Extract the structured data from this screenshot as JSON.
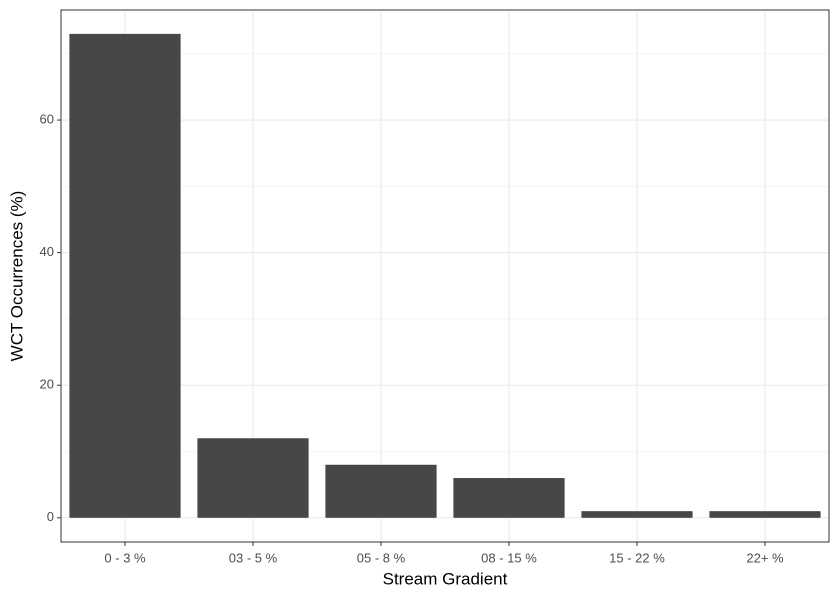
{
  "chart_data": {
    "type": "bar",
    "x_label": "Stream Gradient",
    "y_label": "WCT Occurrences (%)",
    "categories": [
      "0 - 3 %",
      "03 - 5 %",
      "05 - 8 %",
      "08 - 15 %",
      "15 - 22 %",
      "22+ %"
    ],
    "values": [
      73,
      12,
      8,
      6,
      1,
      1
    ],
    "color": "#474747",
    "ylim": [
      -3.65,
      76.6
    ],
    "yticks": [
      0,
      20,
      40,
      60
    ],
    "y_minor_ticks": [
      10,
      30,
      50,
      70
    ],
    "grid": true
  }
}
